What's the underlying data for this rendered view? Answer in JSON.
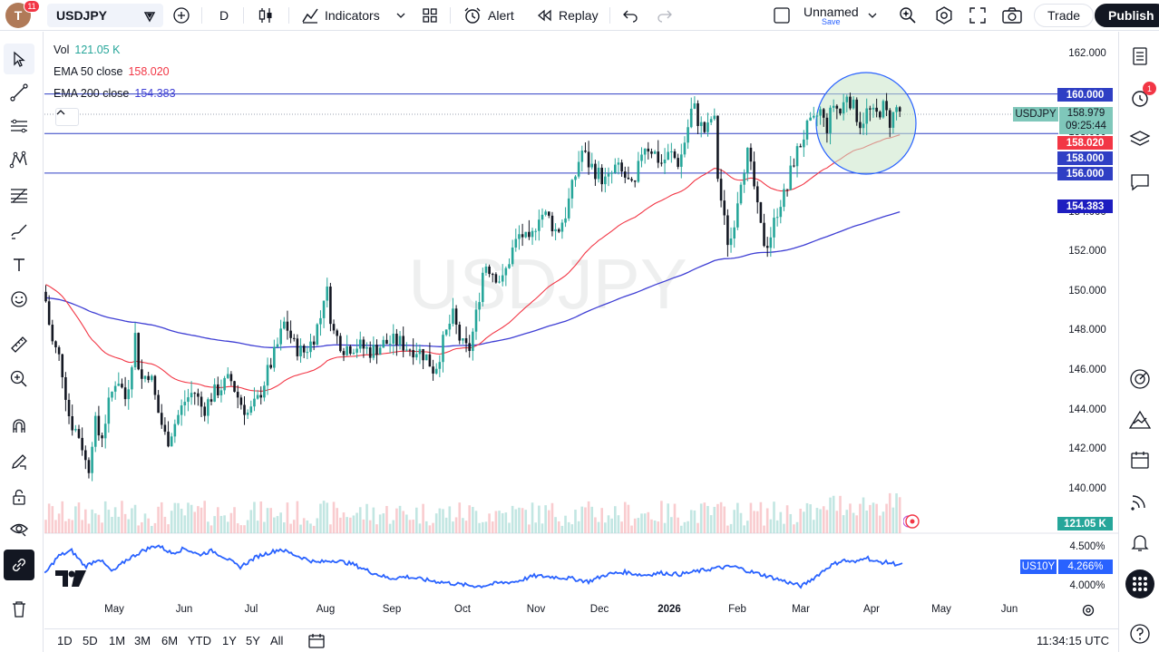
{
  "topbar": {
    "avatar_letter": "T",
    "avatar_badge": "11",
    "symbol": "USDJPY",
    "interval": "D",
    "indicators_label": "Indicators",
    "alert_label": "Alert",
    "replay_label": "Replay",
    "layout_name": "Unnamed",
    "layout_save": "Save",
    "trade_label": "Trade",
    "publish_label": "Publish"
  },
  "legend": {
    "vol_label": "Vol",
    "vol_value": "121.05 K",
    "ema50_label": "EMA 50 close",
    "ema50_value": "158.020",
    "ema200_label": "EMA 200 close",
    "ema200_value": "154.383"
  },
  "price_axis": [
    "162.000",
    "160.000",
    "158.000",
    "156.000",
    "154.000",
    "152.000",
    "150.000",
    "148.000",
    "146.000",
    "144.000",
    "142.000",
    "140.000"
  ],
  "price_labels": {
    "line_160": "160.000",
    "symbol_tag": "USDJPY",
    "last_price": "158.979",
    "countdown": "09:25:44",
    "ema50": "158.020",
    "line_158": "158.000",
    "line_156": "156.000",
    "ema200": "154.383",
    "volume": "121.05 K"
  },
  "compare": {
    "symbol": "US10Y",
    "value": "4.266%",
    "axis": [
      "4.500%",
      "4.000%"
    ]
  },
  "time_axis": [
    "May",
    "Jun",
    "Jul",
    "Aug",
    "Sep",
    "Oct",
    "Nov",
    "Dec",
    "2026",
    "Feb",
    "Mar",
    "Apr",
    "May",
    "Jun"
  ],
  "watermark": "USDJPY",
  "bottombar": {
    "ranges": [
      "1D",
      "5D",
      "1M",
      "3M",
      "6M",
      "YTD",
      "1Y",
      "5Y",
      "All"
    ],
    "clock": "11:34:15 UTC"
  },
  "right_badge": "1",
  "colors": {
    "candle_up": "#26a69a",
    "candle_down": "#131722",
    "ema50": "#f23645",
    "ema200": "#3f3fd4",
    "hline": "#2f3fc4",
    "us10y": "#2962ff"
  }
}
